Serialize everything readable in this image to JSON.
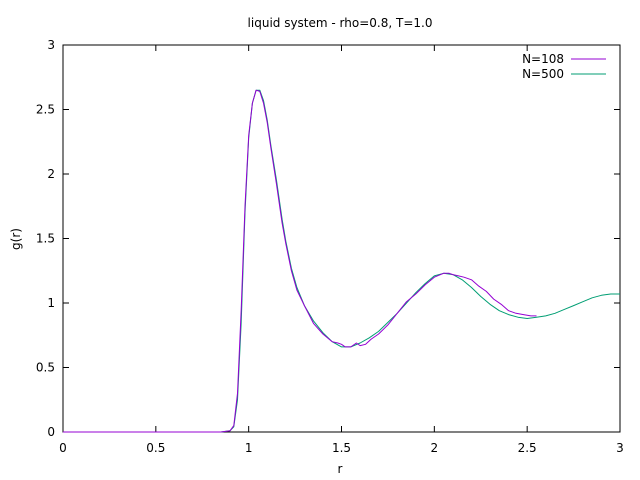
{
  "chart_data": {
    "type": "line",
    "title": "liquid system - rho=0.8, T=1.0",
    "xlabel": "r",
    "ylabel": "g(r)",
    "xlim": [
      0,
      3
    ],
    "ylim": [
      0,
      3
    ],
    "xticks": [
      0,
      0.5,
      1,
      1.5,
      2,
      2.5,
      3
    ],
    "yticks": [
      0,
      0.5,
      1,
      1.5,
      2,
      2.5,
      3
    ],
    "xtick_labels": [
      "0",
      "0.5",
      "1",
      "1.5",
      "2",
      "2.5",
      "3"
    ],
    "ytick_labels": [
      "0",
      "0.5",
      "1",
      "1.5",
      "2",
      "2.5",
      "3"
    ],
    "grid": false,
    "legend_position": "top-right",
    "series": [
      {
        "name": "N=108",
        "color": "#9400d3",
        "x": [
          0,
          0.85,
          0.9,
          0.92,
          0.94,
          0.96,
          0.98,
          1.0,
          1.02,
          1.04,
          1.06,
          1.08,
          1.1,
          1.12,
          1.15,
          1.18,
          1.2,
          1.23,
          1.26,
          1.3,
          1.35,
          1.4,
          1.45,
          1.48,
          1.5,
          1.52,
          1.55,
          1.58,
          1.6,
          1.63,
          1.66,
          1.7,
          1.75,
          1.8,
          1.85,
          1.9,
          1.95,
          2.0,
          2.05,
          2.08,
          2.1,
          2.13,
          2.16,
          2.2,
          2.24,
          2.28,
          2.32,
          2.36,
          2.4,
          2.44,
          2.48,
          2.52,
          2.55
        ],
        "y": [
          0,
          0,
          0.01,
          0.05,
          0.3,
          0.95,
          1.75,
          2.3,
          2.55,
          2.65,
          2.64,
          2.55,
          2.4,
          2.2,
          1.92,
          1.62,
          1.46,
          1.25,
          1.1,
          0.98,
          0.84,
          0.76,
          0.7,
          0.69,
          0.68,
          0.66,
          0.66,
          0.69,
          0.67,
          0.68,
          0.72,
          0.76,
          0.83,
          0.92,
          1.01,
          1.07,
          1.14,
          1.2,
          1.23,
          1.23,
          1.22,
          1.21,
          1.2,
          1.18,
          1.13,
          1.09,
          1.03,
          0.99,
          0.94,
          0.92,
          0.91,
          0.9,
          0.9
        ]
      },
      {
        "name": "N=500",
        "color": "#009e73",
        "x": [
          0,
          0.85,
          0.9,
          0.92,
          0.94,
          0.96,
          0.98,
          1.0,
          1.02,
          1.04,
          1.06,
          1.08,
          1.1,
          1.12,
          1.15,
          1.18,
          1.2,
          1.23,
          1.26,
          1.3,
          1.35,
          1.4,
          1.45,
          1.5,
          1.55,
          1.6,
          1.65,
          1.7,
          1.75,
          1.8,
          1.85,
          1.9,
          1.95,
          2.0,
          2.05,
          2.1,
          2.15,
          2.2,
          2.25,
          2.3,
          2.35,
          2.4,
          2.45,
          2.5,
          2.55,
          2.6,
          2.65,
          2.7,
          2.75,
          2.8,
          2.85,
          2.9,
          2.95,
          3.0
        ],
        "y": [
          0,
          0,
          0.01,
          0.04,
          0.25,
          0.85,
          1.7,
          2.28,
          2.55,
          2.65,
          2.65,
          2.57,
          2.42,
          2.22,
          1.95,
          1.65,
          1.48,
          1.27,
          1.12,
          0.98,
          0.86,
          0.77,
          0.7,
          0.66,
          0.66,
          0.69,
          0.73,
          0.78,
          0.85,
          0.92,
          1.0,
          1.08,
          1.15,
          1.21,
          1.23,
          1.22,
          1.18,
          1.12,
          1.05,
          0.99,
          0.94,
          0.91,
          0.89,
          0.88,
          0.89,
          0.9,
          0.92,
          0.95,
          0.98,
          1.01,
          1.04,
          1.06,
          1.07,
          1.07
        ]
      }
    ]
  }
}
